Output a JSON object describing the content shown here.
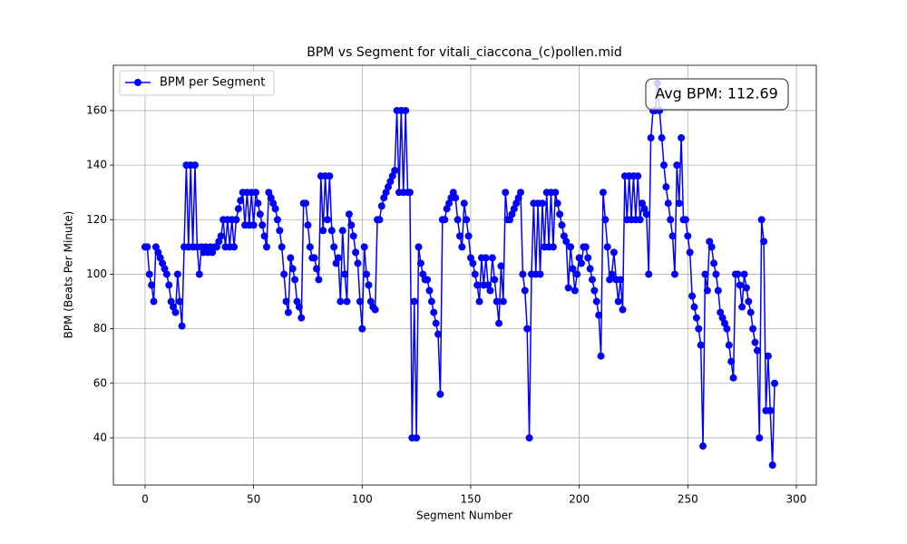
{
  "chart_data": {
    "type": "line",
    "title": "BPM vs Segment for vitali_ciaccona_(c)pollen.mid",
    "x_label": "Segment Number",
    "y_label": "BPM (Beats Per Minute)",
    "annotation": "Avg BPM: 112.69",
    "legend_position": "upper left",
    "grid": true,
    "xlim": [
      -14.6,
      309.2
    ],
    "ylim": [
      22.7,
      176.6
    ],
    "xticks": [
      0,
      50,
      100,
      150,
      200,
      250,
      300
    ],
    "yticks": [
      40,
      60,
      80,
      100,
      120,
      140,
      160
    ],
    "x": [
      0,
      1,
      2,
      3,
      4,
      5,
      6,
      7,
      8,
      9,
      10,
      11,
      12,
      13,
      14,
      15,
      16,
      17,
      18,
      19,
      20,
      21,
      22,
      23,
      24,
      25,
      26,
      27,
      28,
      29,
      30,
      31,
      32,
      33,
      34,
      35,
      36,
      37,
      38,
      39,
      40,
      41,
      42,
      43,
      44,
      45,
      46,
      47,
      48,
      49,
      50,
      51,
      52,
      53,
      54,
      55,
      56,
      57,
      58,
      59,
      60,
      61,
      62,
      63,
      64,
      65,
      66,
      67,
      68,
      69,
      70,
      71,
      72,
      73,
      74,
      75,
      76,
      77,
      78,
      79,
      80,
      81,
      82,
      83,
      84,
      85,
      86,
      87,
      88,
      89,
      90,
      91,
      92,
      93,
      94,
      95,
      96,
      97,
      98,
      99,
      100,
      101,
      102,
      103,
      104,
      105,
      106,
      107,
      108,
      109,
      110,
      111,
      112,
      113,
      114,
      115,
      116,
      117,
      118,
      119,
      120,
      121,
      122,
      123,
      124,
      125,
      126,
      127,
      128,
      129,
      130,
      131,
      132,
      133,
      134,
      135,
      136,
      137,
      138,
      139,
      140,
      141,
      142,
      143,
      144,
      145,
      146,
      147,
      148,
      149,
      150,
      151,
      152,
      153,
      154,
      155,
      156,
      157,
      158,
      159,
      160,
      161,
      162,
      163,
      164,
      165,
      166,
      167,
      168,
      169,
      170,
      171,
      172,
      173,
      174,
      175,
      176,
      177,
      178,
      179,
      180,
      181,
      182,
      183,
      184,
      185,
      186,
      187,
      188,
      189,
      190,
      191,
      192,
      193,
      194,
      195,
      196,
      197,
      198,
      199,
      200,
      201,
      202,
      203,
      204,
      205,
      206,
      207,
      208,
      209,
      210,
      211,
      212,
      213,
      214,
      215,
      216,
      217,
      218,
      219,
      220,
      221,
      222,
      223,
      224,
      225,
      226,
      227,
      228,
      229,
      230,
      231,
      232,
      233,
      234,
      235,
      236,
      237,
      238,
      239,
      240,
      241,
      242,
      243,
      244,
      245,
      246,
      247,
      248,
      249,
      250,
      251,
      252,
      253,
      254,
      255,
      256,
      257,
      258,
      259,
      260,
      261,
      262,
      263,
      264,
      265,
      266,
      267,
      268,
      269,
      270,
      271,
      272,
      273,
      274,
      275,
      276,
      277,
      278,
      279,
      280,
      281,
      282,
      283,
      284,
      285,
      286,
      287,
      288,
      289,
      290
    ],
    "series": [
      {
        "name": "BPM per Segment",
        "color": "#0000ff",
        "values": [
          110,
          110,
          100,
          96,
          90,
          110,
          108,
          106,
          104,
          102,
          100,
          96,
          90,
          88,
          86,
          100,
          90,
          81,
          110,
          140,
          110,
          140,
          110,
          140,
          110,
          100,
          110,
          108,
          110,
          108,
          110,
          108,
          110,
          110,
          112,
          114,
          120,
          110,
          120,
          110,
          120,
          110,
          120,
          124,
          127,
          130,
          118,
          130,
          118,
          130,
          118,
          130,
          126,
          122,
          118,
          114,
          110,
          130,
          128,
          126,
          124,
          120,
          116,
          110,
          100,
          90,
          86,
          106,
          102,
          98,
          90,
          88,
          84,
          126,
          126,
          118,
          110,
          106,
          106,
          102,
          98,
          136,
          116,
          136,
          120,
          136,
          116,
          110,
          104,
          106,
          90,
          116,
          100,
          90,
          122,
          118,
          114,
          108,
          104,
          90,
          80,
          110,
          100,
          96,
          90,
          88,
          87,
          120,
          120,
          125,
          128,
          130,
          132,
          134,
          136,
          138,
          160,
          130,
          160,
          130,
          160,
          130,
          130,
          40,
          90,
          40,
          110,
          104,
          100,
          98,
          98,
          94,
          90,
          86,
          82,
          78,
          56,
          120,
          120,
          124,
          126,
          128,
          130,
          128,
          120,
          114,
          110,
          126,
          120,
          114,
          106,
          104,
          100,
          96,
          90,
          106,
          96,
          106,
          96,
          94,
          106,
          98,
          90,
          82,
          103,
          90,
          130,
          120,
          120,
          122,
          124,
          126,
          128,
          130,
          100,
          94,
          80,
          40,
          100,
          126,
          100,
          126,
          100,
          126,
          110,
          130,
          110,
          130,
          110,
          130,
          126,
          122,
          118,
          114,
          112,
          95,
          110,
          102,
          94,
          100,
          106,
          104,
          110,
          110,
          106,
          102,
          98,
          94,
          90,
          85,
          70,
          130,
          120,
          110,
          98,
          100,
          108,
          98,
          90,
          98,
          87,
          136,
          120,
          136,
          120,
          136,
          120,
          136,
          120,
          126,
          124,
          122,
          100,
          150,
          160,
          160,
          170,
          160,
          150,
          140,
          132,
          126,
          120,
          114,
          100,
          140,
          126,
          150,
          120,
          120,
          114,
          108,
          92,
          88,
          84,
          80,
          74,
          37,
          100,
          94,
          112,
          110,
          104,
          100,
          94,
          86,
          84,
          82,
          80,
          74,
          68,
          62,
          100,
          100,
          96,
          88,
          100,
          95,
          90,
          86,
          80,
          75,
          72,
          40,
          120,
          112,
          50,
          70,
          50,
          30,
          60
        ]
      }
    ]
  }
}
